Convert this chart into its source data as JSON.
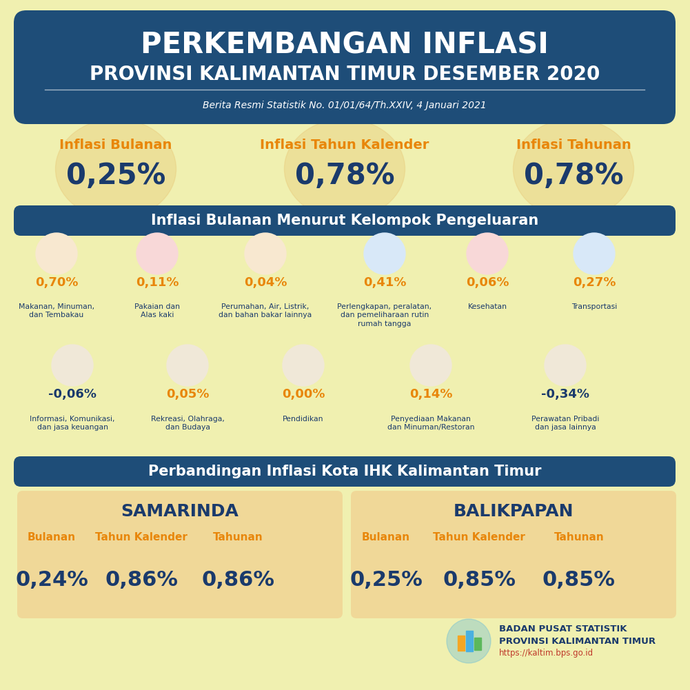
{
  "bg_color": "#f0f0b0",
  "header_bg": "#1e4d78",
  "header_title1": "PERKEMBANGAN INFLASI",
  "header_title2": "PROVINSI KALIMANTAN TIMUR DESEMBER 2020",
  "header_subtitle": "Berita Resmi Statistik No. 01/01/64/Th.XXIV, 4 Januari 2021",
  "inflasi_labels": [
    "Inflasi Bulanan",
    "Inflasi Tahun Kalender",
    "Inflasi Tahunan"
  ],
  "inflasi_values": [
    "0,25%",
    "0,78%",
    "0,78%"
  ],
  "inflasi_label_color": "#e8860a",
  "inflasi_value_color": "#1a3a6c",
  "section2_title": "Inflasi Bulanan Menurut Kelompok Pengeluaran",
  "section_bg": "#1e4d78",
  "categories_row1": [
    {
      "label": "Makanan, Minuman,\ndan Tembakau",
      "value": "0,70%",
      "value_color": "#e8860a"
    },
    {
      "label": "Pakaian dan\nAlas kaki",
      "value": "0,11%",
      "value_color": "#e8860a"
    },
    {
      "label": "Perumahan, Air, Listrik,\ndan bahan bakar lainnya",
      "value": "0,04%",
      "value_color": "#e8860a"
    },
    {
      "label": "Perlengkapan, peralatan,\ndan pemeliharaan rutin\nrumah tangga",
      "value": "0,41%",
      "value_color": "#e8860a"
    },
    {
      "label": "Kesehatan",
      "value": "0,06%",
      "value_color": "#e8860a"
    },
    {
      "label": "Transportasi",
      "value": "0,27%",
      "value_color": "#e8860a"
    }
  ],
  "categories_row2": [
    {
      "label": "Informasi, Komunikasi,\ndan jasa keuangan",
      "value": "-0,06%",
      "value_color": "#1a3a6c"
    },
    {
      "label": "Rekreasi, Olahraga,\ndan Budaya",
      "value": "0,05%",
      "value_color": "#e8860a"
    },
    {
      "label": "Pendidikan",
      "value": "0,00%",
      "value_color": "#e8860a"
    },
    {
      "label": "Penyediaan Makanan\ndan Minuman/Restoran",
      "value": "0,14%",
      "value_color": "#e8860a"
    },
    {
      "label": "Perawatan Pribadi\ndan jasa lainnya",
      "value": "-0,34%",
      "value_color": "#1a3a6c"
    }
  ],
  "section3_title": "Perbandingan Inflasi Kota IHK Kalimantan Timur",
  "samarinda_title": "SAMARINDA",
  "balikpapan_title": "BALIKPAPAN",
  "col_labels": [
    "Bulanan",
    "Tahun Kalender",
    "Tahunan"
  ],
  "samarinda_values": [
    "0,24%",
    "0,86%",
    "0,86%"
  ],
  "balikpapan_values": [
    "0,25%",
    "0,85%",
    "0,85%"
  ],
  "bps_line1": "BADAN PUSAT STATISTIK",
  "bps_line2": "PROVINSI KALIMANTAN TIMUR",
  "bps_line3": "https://kaltim.bps.go.id",
  "dark_blue": "#1a3a6c",
  "orange": "#e8860a",
  "tan_box": "#f0d898",
  "label_color": "#1a3a6c"
}
